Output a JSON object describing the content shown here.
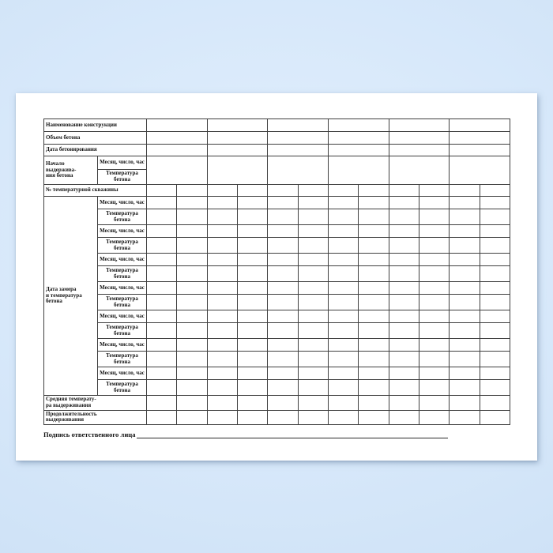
{
  "colors": {
    "background_blue": "#d7e8fa",
    "page_white": "#ffffff",
    "table_border": "#3f3f3f",
    "text": "#141414"
  },
  "table": {
    "row_labels": {
      "construction_name": "Наименование конструкции",
      "concrete_volume": "Объем бетона",
      "concreting_date": "Дата бетонирования",
      "curing_start": "Начало выдержива-\nния бетона",
      "well_number": "№ температурной скважины",
      "measurement_section": "Дата замера\nи температура\nбетона",
      "average_temp": "Средняя температу-\nра выдерживания",
      "curing_duration": "Продолжительность\nвыдерживания"
    },
    "sub_labels": {
      "month_day_hour": "Месяц, число, час",
      "concrete_temp": "Температура\nбетона"
    },
    "layout_counts": {
      "wide_data_columns": 6,
      "narrow_data_columns": 12,
      "measurement_pairs": 7
    }
  },
  "signature": {
    "label": "Подпись ответственного лица"
  }
}
